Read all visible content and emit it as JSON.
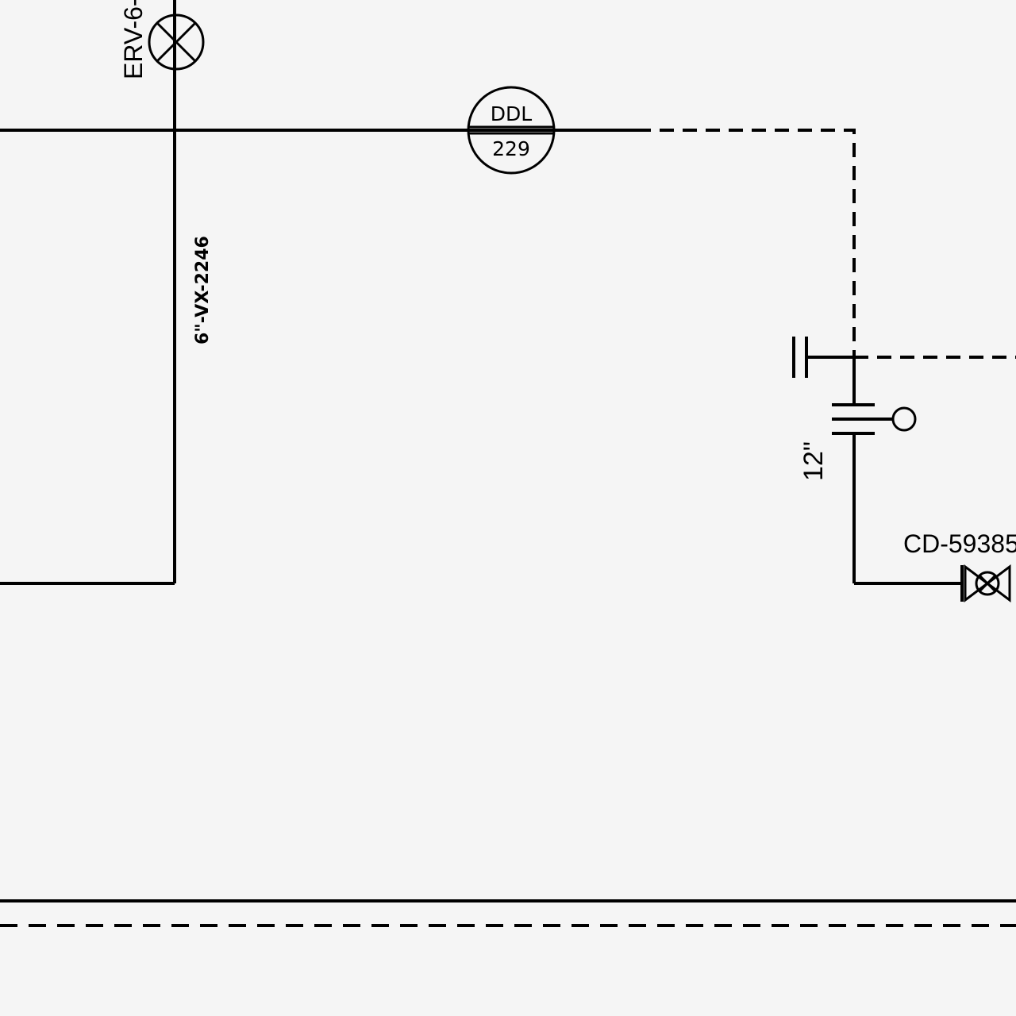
{
  "diagram": {
    "instrument": {
      "function": "DDL",
      "number": "229"
    },
    "relief_valve": {
      "tag": "ERV-6-"
    },
    "line_spec": {
      "label": "6\"-VX-2246"
    },
    "pipe_size": {
      "label": "12\""
    },
    "control_valve": {
      "tag": "CD-59385"
    },
    "colors": {
      "line": "#000000",
      "background": "#f5f5f5"
    }
  }
}
